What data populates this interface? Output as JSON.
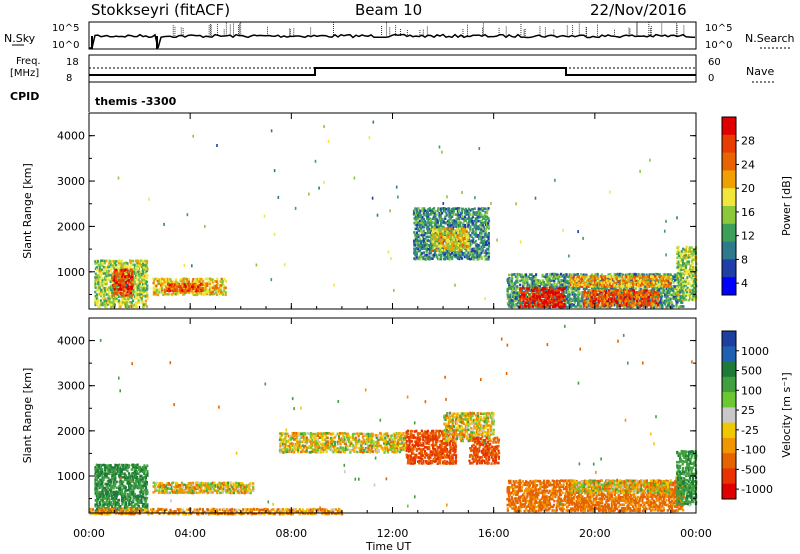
{
  "header": {
    "station": "Stokkseyri (fitACF)",
    "beam": "Beam 10",
    "date": "22/Nov/2016"
  },
  "strip": {
    "nsky_label": "N.Sky",
    "nsky_ticks": [
      "10^5",
      "10^0"
    ],
    "nsearch_label": "N.Search",
    "nsearch_ticks": [
      "10^5",
      "10^0"
    ],
    "freq_label_line1": "Freq.",
    "freq_label_line2": "[MHz]",
    "freq_ticks": [
      "18",
      "8"
    ],
    "nave_label": "Nave",
    "nave_ticks": [
      "60",
      "0"
    ],
    "cpid_label": "CPID",
    "cpid_text": "themis -3300"
  },
  "colors": {
    "power_scale": [
      "#0000ff",
      "#1f3fa8",
      "#2e7a8c",
      "#3ca05a",
      "#8cc83c",
      "#f0e63c",
      "#f0a000",
      "#e86400",
      "#e83c00",
      "#e00000"
    ],
    "velocity_scale": [
      "#1c3fa0",
      "#2060b0",
      "#1f7a3a",
      "#40a040",
      "#6cc830",
      "#c8c8c8",
      "#f0c800",
      "#f09600",
      "#e66400",
      "#e83200",
      "#e00000"
    ]
  },
  "chart_data": [
    {
      "type": "heatmap",
      "title": "",
      "ylabel": "Slant Range [km]",
      "xlabel": "",
      "x_ticks": [
        "00:00",
        "04:00",
        "08:00",
        "12:00",
        "16:00",
        "20:00",
        "00:00"
      ],
      "y_ticks": [
        "1000",
        "2000",
        "3000",
        "4000"
      ],
      "ylim": [
        180,
        4500
      ],
      "xlim_hours": [
        0,
        24
      ],
      "colorbar_label": "Power [dB]",
      "colorbar_ticks": [
        "28",
        "24",
        "20",
        "16",
        "12",
        "8",
        "4"
      ],
      "colorbar_range": [
        0,
        30
      ],
      "regions": [
        {
          "t0": 0.2,
          "t1": 2.3,
          "r0": 250,
          "r1": 1300,
          "power": 14
        },
        {
          "t0": 0.9,
          "t1": 1.7,
          "r0": 500,
          "r1": 1100,
          "power": 26
        },
        {
          "t0": 2.5,
          "t1": 5.4,
          "r0": 520,
          "r1": 900,
          "power": 18
        },
        {
          "t0": 3.0,
          "t1": 4.5,
          "r0": 600,
          "r1": 780,
          "power": 24
        },
        {
          "t0": 12.8,
          "t1": 15.8,
          "r0": 1300,
          "r1": 2450,
          "power": 9
        },
        {
          "t0": 13.5,
          "t1": 15.0,
          "r0": 1500,
          "r1": 2000,
          "power": 17
        },
        {
          "t0": 16.5,
          "t1": 23.5,
          "r0": 250,
          "r1": 1000,
          "power": 10
        },
        {
          "t0": 17.0,
          "t1": 18.8,
          "r0": 250,
          "r1": 700,
          "power": 28
        },
        {
          "t0": 19.5,
          "t1": 22.5,
          "r0": 280,
          "r1": 650,
          "power": 24
        },
        {
          "t0": 19.0,
          "t1": 23.0,
          "r0": 700,
          "r1": 950,
          "power": 20
        },
        {
          "t0": 23.2,
          "t1": 24.0,
          "r0": 400,
          "r1": 1600,
          "power": 14
        }
      ]
    },
    {
      "type": "heatmap",
      "title": "",
      "ylabel": "Slant Range [km]",
      "xlabel": "Time UT",
      "x_ticks": [
        "00:00",
        "04:00",
        "08:00",
        "12:00",
        "16:00",
        "20:00",
        "00:00"
      ],
      "y_ticks": [
        "1000",
        "2000",
        "3000",
        "4000"
      ],
      "ylim": [
        180,
        4500
      ],
      "xlim_hours": [
        0,
        24
      ],
      "colorbar_label": "Velocity [m s⁻¹]",
      "colorbar_ticks": [
        "1000",
        "500",
        "100",
        "25",
        "-25",
        "-100",
        "-500",
        "-1000"
      ],
      "colorbar_range": [
        -1000,
        1000
      ],
      "regions": [
        {
          "t0": 0.2,
          "t1": 2.3,
          "r0": 250,
          "r1": 1300,
          "velocity": 300
        },
        {
          "t0": 2.5,
          "t1": 6.5,
          "r0": 650,
          "r1": 900,
          "velocity": 0
        },
        {
          "t0": 7.5,
          "t1": 12.5,
          "r0": 1550,
          "r1": 2000,
          "velocity": 0
        },
        {
          "t0": 12.5,
          "t1": 14.5,
          "r0": 1300,
          "r1": 2050,
          "velocity": -300
        },
        {
          "t0": 14.0,
          "t1": 16.0,
          "r0": 1800,
          "r1": 2450,
          "velocity": 0
        },
        {
          "t0": 15.0,
          "t1": 16.2,
          "r0": 1300,
          "r1": 1900,
          "velocity": -300
        },
        {
          "t0": 16.5,
          "t1": 23.5,
          "r0": 250,
          "r1": 950,
          "velocity": -150
        },
        {
          "t0": 19.0,
          "t1": 23.0,
          "r0": 650,
          "r1": 950,
          "velocity": 0
        },
        {
          "t0": 23.2,
          "t1": 24.0,
          "r0": 400,
          "r1": 1600,
          "velocity": 250
        },
        {
          "t0": 0.0,
          "t1": 10.0,
          "r0": 180,
          "r1": 320,
          "velocity": -80
        }
      ]
    }
  ]
}
